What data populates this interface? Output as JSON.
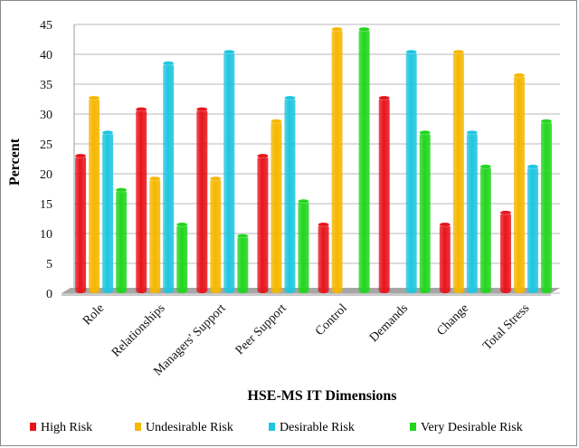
{
  "chart_data": {
    "type": "bar",
    "title": "",
    "xlabel": "HSE-MS IT Dimensions",
    "ylabel": "Percent",
    "ylim": [
      0,
      45
    ],
    "yticks": [
      0,
      5,
      10,
      15,
      20,
      25,
      30,
      35,
      40,
      45
    ],
    "grid": true,
    "legend_position": "bottom",
    "categories": [
      "Role",
      "Relationships",
      "Managers' Support",
      "Peer Support",
      "Control",
      "Demands",
      "Change",
      "Total Stress"
    ],
    "series": [
      {
        "name": "High Risk",
        "color": "#e8141c",
        "values": [
          23,
          30.8,
          30.8,
          23,
          11.5,
          32.7,
          11.5,
          13.5
        ]
      },
      {
        "name": "Undesirable Risk",
        "color": "#f5b700",
        "values": [
          32.7,
          19.2,
          19.2,
          28.8,
          44.2,
          0,
          40.4,
          36.5
        ]
      },
      {
        "name": "Desirable Risk",
        "color": "#1fc6e0",
        "values": [
          26.9,
          38.5,
          40.4,
          32.7,
          0,
          40.4,
          26.9,
          21.2
        ]
      },
      {
        "name": "Very Desirable Risk",
        "color": "#22d61e",
        "values": [
          17.3,
          11.5,
          9.6,
          15.4,
          44.2,
          26.9,
          21.2,
          28.8
        ]
      }
    ]
  }
}
